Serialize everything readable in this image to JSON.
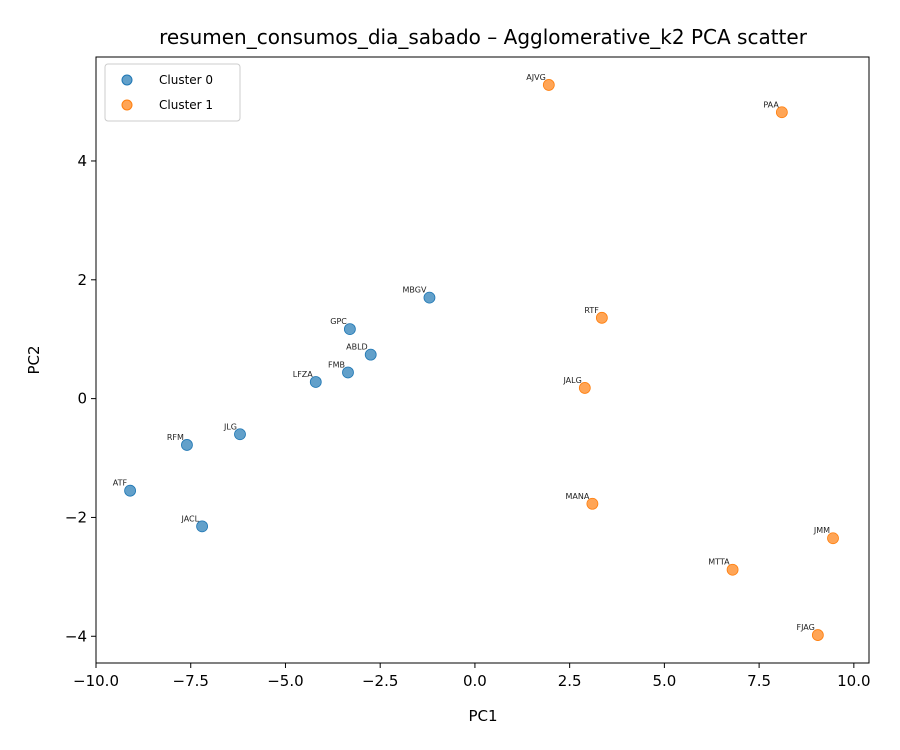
{
  "chart_data": {
    "type": "scatter",
    "title": "resumen_consumos_dia_sabado – Agglomerative_k2 PCA scatter",
    "xlabel": "PC1",
    "ylabel": "PC2",
    "xlim": [
      -10,
      10.4
    ],
    "ylim": [
      -4.45,
      5.75
    ],
    "xticks": [
      -10,
      -7.5,
      -5,
      -2.5,
      0,
      2.5,
      5,
      7.5,
      10
    ],
    "xtick_labels": [
      "−10.0",
      "−7.5",
      "−5.0",
      "−2.5",
      "0.0",
      "2.5",
      "5.0",
      "7.5",
      "10.0"
    ],
    "yticks": [
      -4,
      -2,
      0,
      2,
      4
    ],
    "ytick_labels": [
      "−4",
      "−2",
      "0",
      "2",
      "4"
    ],
    "grid": false,
    "legend_position": "top-left",
    "series": [
      {
        "name": "Cluster 0",
        "color": "#1f77b4",
        "points": [
          {
            "label": "MBGV",
            "x": -1.2,
            "y": 1.7
          },
          {
            "label": "GPC",
            "x": -3.3,
            "y": 1.17
          },
          {
            "label": "ABLD",
            "x": -2.75,
            "y": 0.74
          },
          {
            "label": "FMB",
            "x": -3.35,
            "y": 0.44
          },
          {
            "label": "LFZA",
            "x": -4.2,
            "y": 0.28
          },
          {
            "label": "JLG",
            "x": -6.2,
            "y": -0.6
          },
          {
            "label": "RFM",
            "x": -7.6,
            "y": -0.78
          },
          {
            "label": "ATF",
            "x": -9.1,
            "y": -1.55
          },
          {
            "label": "JACL",
            "x": -7.2,
            "y": -2.15
          }
        ]
      },
      {
        "name": "Cluster 1",
        "color": "#ff7f0e",
        "points": [
          {
            "label": "AJVG",
            "x": 1.95,
            "y": 5.28
          },
          {
            "label": "PAA",
            "x": 8.1,
            "y": 4.82
          },
          {
            "label": "RTF",
            "x": 3.35,
            "y": 1.36
          },
          {
            "label": "JALG",
            "x": 2.9,
            "y": 0.18
          },
          {
            "label": "MANA",
            "x": 3.1,
            "y": -1.77
          },
          {
            "label": "JMM",
            "x": 9.45,
            "y": -2.35
          },
          {
            "label": "MTTA",
            "x": 6.8,
            "y": -2.88
          },
          {
            "label": "FJAG",
            "x": 9.05,
            "y": -3.98
          }
        ]
      }
    ]
  }
}
